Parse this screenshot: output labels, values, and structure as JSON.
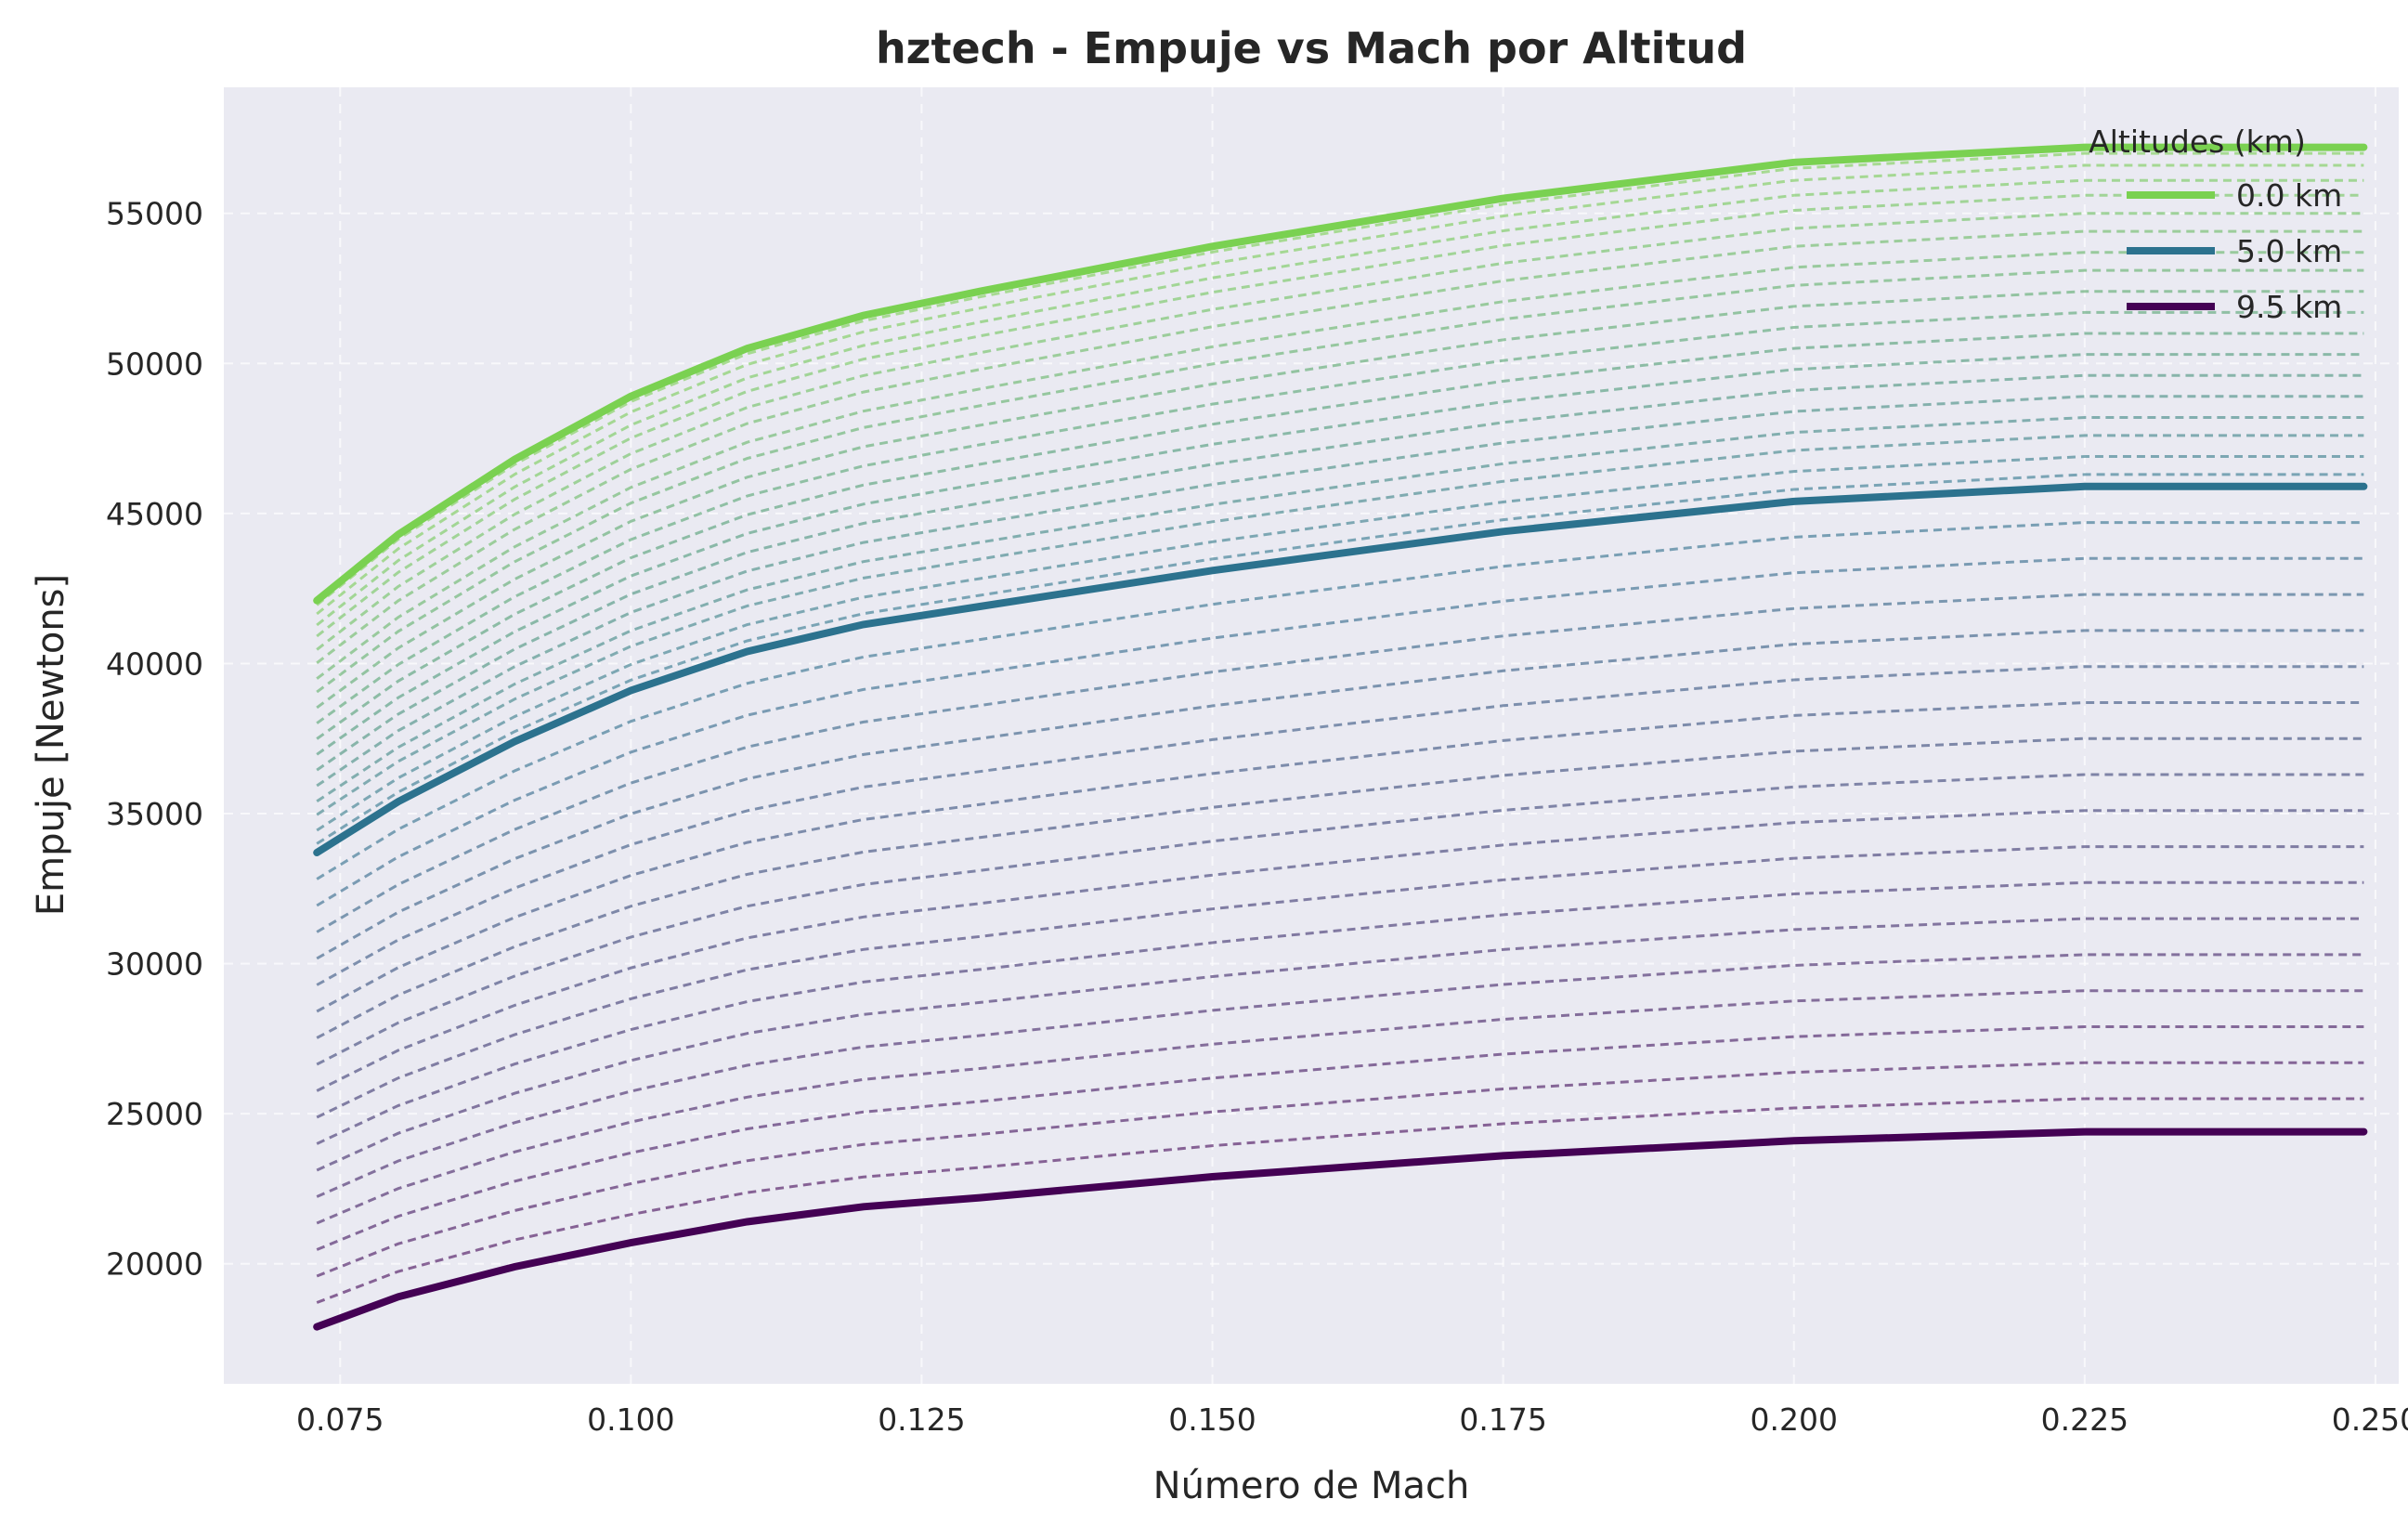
{
  "chart_data": {
    "type": "line",
    "title": "hztech - Empuje vs Mach por Altitud",
    "xlabel": "Número de Mach",
    "ylabel": "Empuje [Newtons]",
    "xlim": [
      0.065,
      0.252
    ],
    "ylim": [
      16000,
      59200
    ],
    "xticks": [
      0.075,
      0.1,
      0.125,
      0.15,
      0.175,
      0.2,
      0.225,
      0.25
    ],
    "xtick_labels": [
      "0.075",
      "0.100",
      "0.125",
      "0.150",
      "0.175",
      "0.200",
      "0.225",
      "0.250"
    ],
    "yticks": [
      20000,
      25000,
      30000,
      35000,
      40000,
      45000,
      50000,
      55000
    ],
    "ytick_labels": [
      "20000",
      "25000",
      "30000",
      "35000",
      "40000",
      "45000",
      "50000",
      "55000"
    ],
    "grid": true,
    "legend": {
      "title": "Altitudes (km)",
      "position": "top-right",
      "entries": [
        "0.0 km",
        "5.0 km",
        "9.5 km"
      ]
    },
    "x": [
      0.073,
      0.08,
      0.09,
      0.1,
      0.11,
      0.12,
      0.13,
      0.15,
      0.175,
      0.2,
      0.225,
      0.249
    ],
    "series": [
      {
        "name": "0.0 km",
        "color": "#7ad151",
        "highlight": true,
        "values": [
          42100,
          44300,
          46800,
          48900,
          50500,
          51600,
          52400,
          53900,
          55500,
          56700,
          57200,
          57200
        ]
      },
      {
        "name": "5.0 km",
        "color": "#2c728e",
        "highlight": true,
        "values": [
          33700,
          35400,
          37400,
          39100,
          40400,
          41300,
          41900,
          43100,
          44400,
          45400,
          45900,
          45900
        ]
      },
      {
        "name": "9.5 km",
        "color": "#440154",
        "highlight": true,
        "values": [
          17900,
          18900,
          19900,
          20700,
          21400,
          21900,
          22200,
          22900,
          23600,
          24100,
          24400,
          24400
        ]
      }
    ],
    "background_series": {
      "style": "dashed",
      "upper_group": {
        "from": "0.0 km",
        "to": "5.0 km",
        "end_values": [
          57000,
          56600,
          56100,
          55600,
          55000,
          54400,
          53700,
          53100,
          52400,
          51700,
          51000,
          50300,
          49600,
          48900,
          48200,
          47600,
          46900,
          46300
        ]
      },
      "lower_group": {
        "from": "5.0 km",
        "to": "9.5 km",
        "end_values": [
          44700,
          43500,
          42300,
          41100,
          39900,
          38700,
          37500,
          36300,
          35100,
          33900,
          32700,
          31500,
          30300,
          29100,
          27900,
          26700,
          25500
        ]
      }
    }
  }
}
